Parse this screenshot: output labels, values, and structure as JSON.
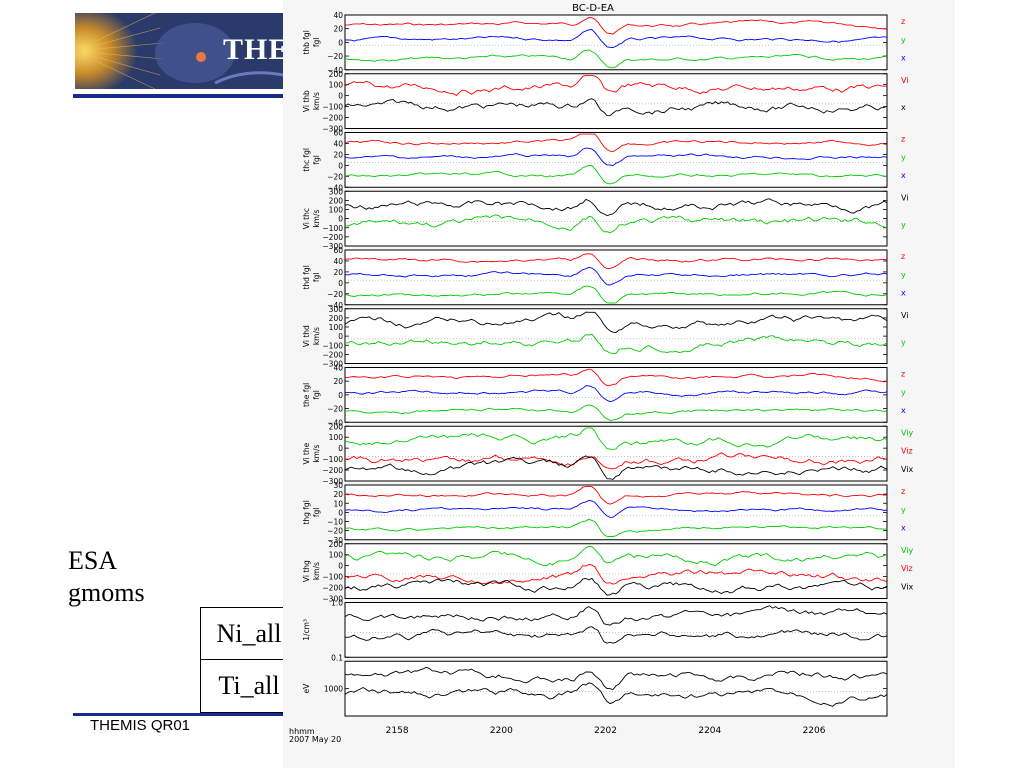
{
  "slide": {
    "side_label_line1": "ESA",
    "side_label_line2": "gmoms",
    "box1": "Ni_all",
    "box2": "Ti_all",
    "footer": "THEMIS QR01",
    "logo_text": "THE"
  },
  "chart_data": {
    "type": "line",
    "title": "BC-D-EA",
    "x_ticks": [
      "2158",
      "2200",
      "2202",
      "2204",
      "2206"
    ],
    "x_range": [
      "2157.0",
      "2207.4"
    ],
    "x_axis_label_line1": "hhmm",
    "x_axis_label_line2": "2007 May 20",
    "panels": [
      {
        "ylabel": "thb fgl",
        "ylabel2": "fgl",
        "ylim": [
          -40,
          40
        ],
        "ticks": [
          "40",
          "20",
          "0",
          "−20",
          "−40"
        ],
        "legend": [
          "z",
          "y",
          "x"
        ],
        "legend_colors": [
          "#ff0000",
          "#00cc00",
          "#0000ff"
        ]
      },
      {
        "ylabel": "Vi thb",
        "ylabel2": "km/s",
        "ylim": [
          -300,
          200
        ],
        "ticks": [
          "200",
          "100",
          "0",
          "−100",
          "−200",
          "−300"
        ],
        "legend": [
          "Vi",
          "x"
        ],
        "legend_colors": [
          "#ff0000",
          "#000000"
        ]
      },
      {
        "ylabel": "thc fgl",
        "ylabel2": "fgl",
        "ylim": [
          -40,
          60
        ],
        "ticks": [
          "60",
          "40",
          "20",
          "0",
          "−20",
          "−40"
        ],
        "legend": [
          "z",
          "y",
          "x"
        ],
        "legend_colors": [
          "#ff0000",
          "#00cc00",
          "#0000ff"
        ]
      },
      {
        "ylabel": "Vi thc",
        "ylabel2": "km/s",
        "ylim": [
          -300,
          300
        ],
        "ticks": [
          "300",
          "200",
          "100",
          "0",
          "−100",
          "−200",
          "−300"
        ],
        "legend": [
          "Vi",
          "y"
        ],
        "legend_colors": [
          "#000000",
          "#00cc00"
        ]
      },
      {
        "ylabel": "thd fgl",
        "ylabel2": "fgl",
        "ylim": [
          -40,
          60
        ],
        "ticks": [
          "60",
          "40",
          "20",
          "0",
          "−20",
          "−40"
        ],
        "legend": [
          "z",
          "y",
          "x"
        ],
        "legend_colors": [
          "#ff0000",
          "#00cc00",
          "#0000ff"
        ]
      },
      {
        "ylabel": "Vi thd",
        "ylabel2": "km/s",
        "ylim": [
          -300,
          300
        ],
        "ticks": [
          "300",
          "200",
          "100",
          "0",
          "−100",
          "−200",
          "−300"
        ],
        "legend": [
          "Vi",
          "y"
        ],
        "legend_colors": [
          "#000000",
          "#00cc00"
        ]
      },
      {
        "ylabel": "the fgl",
        "ylabel2": "fgl",
        "ylim": [
          -40,
          40
        ],
        "ticks": [
          "40",
          "20",
          "0",
          "−20",
          "−40"
        ],
        "legend": [
          "z",
          "y",
          "x"
        ],
        "legend_colors": [
          "#ff0000",
          "#00cc00",
          "#0000ff"
        ]
      },
      {
        "ylabel": "Vi the",
        "ylabel2": "km/s",
        "ylim": [
          -300,
          200
        ],
        "ticks": [
          "200",
          "100",
          "0",
          "−100",
          "−200",
          "−300"
        ],
        "legend": [
          "Viy",
          "Viz",
          "Vix"
        ],
        "legend_colors": [
          "#00cc00",
          "#ff0000",
          "#000000"
        ]
      },
      {
        "ylabel": "thg fgl",
        "ylabel2": "fgl",
        "ylim": [
          -30,
          30
        ],
        "ticks": [
          "30",
          "20",
          "10",
          "0",
          "−10",
          "−20",
          "−30"
        ],
        "legend": [
          "z",
          "y",
          "x"
        ],
        "legend_colors": [
          "#ff0000",
          "#00cc00",
          "#0000ff"
        ]
      },
      {
        "ylabel": "Vi thg",
        "ylabel2": "km/s",
        "ylim": [
          -300,
          200
        ],
        "ticks": [
          "200",
          "100",
          "0",
          "−100",
          "−200",
          "−300"
        ],
        "legend": [
          "Viy",
          "Viz",
          "Vix"
        ],
        "legend_colors": [
          "#00cc00",
          "#ff0000",
          "#000000"
        ]
      },
      {
        "ylabel": "1/cm³",
        "ylabel2": "",
        "ylim": [
          0.1,
          10
        ],
        "ticks": [
          "1.0",
          "0.1"
        ],
        "legend": [],
        "legend_colors": []
      },
      {
        "ylabel": "eV",
        "ylabel2": "",
        "ylim": [
          100,
          10000
        ],
        "ticks": [
          "1000"
        ],
        "legend": [],
        "legend_colors": []
      }
    ]
  }
}
